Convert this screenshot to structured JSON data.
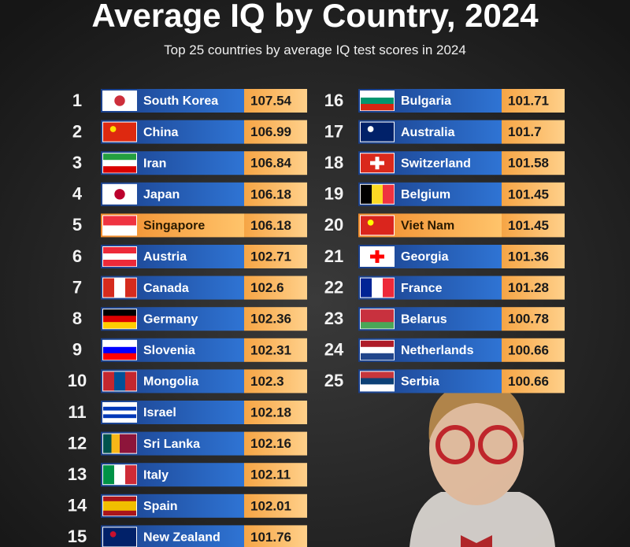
{
  "header": {
    "title": "Average IQ by Country, 2024",
    "subtitle": "Top 25 countries by average IQ test scores in 2024"
  },
  "table": {
    "rows": [
      {
        "rank": 1,
        "country": "South Korea",
        "score": 107.54
      },
      {
        "rank": 2,
        "country": "China",
        "score": 106.99
      },
      {
        "rank": 3,
        "country": "Iran",
        "score": 106.84
      },
      {
        "rank": 4,
        "country": "Japan",
        "score": 106.18
      },
      {
        "rank": 5,
        "country": "Singapore",
        "score": 106.18,
        "highlight": true
      },
      {
        "rank": 6,
        "country": "Austria",
        "score": 102.71
      },
      {
        "rank": 7,
        "country": "Canada",
        "score": 102.6
      },
      {
        "rank": 8,
        "country": "Germany",
        "score": 102.36
      },
      {
        "rank": 9,
        "country": "Slovenia",
        "score": 102.31
      },
      {
        "rank": 10,
        "country": "Mongolia",
        "score": 102.3
      },
      {
        "rank": 11,
        "country": "Israel",
        "score": 102.18
      },
      {
        "rank": 12,
        "country": "Sri Lanka",
        "score": 102.16
      },
      {
        "rank": 13,
        "country": "Italy",
        "score": 102.11
      },
      {
        "rank": 14,
        "country": "Spain",
        "score": 102.01
      },
      {
        "rank": 15,
        "country": "New Zealand",
        "score": 101.76
      },
      {
        "rank": 16,
        "country": "Bulgaria",
        "score": 101.71
      },
      {
        "rank": 17,
        "country": "Australia",
        "score": 101.7
      },
      {
        "rank": 18,
        "country": "Switzerland",
        "score": 101.58
      },
      {
        "rank": 19,
        "country": "Belgium",
        "score": 101.45
      },
      {
        "rank": 20,
        "country": "Viet Nam",
        "score": 101.45,
        "highlight": true
      },
      {
        "rank": 21,
        "country": "Georgia",
        "score": 101.36
      },
      {
        "rank": 22,
        "country": "France",
        "score": 101.28
      },
      {
        "rank": 23,
        "country": "Belarus",
        "score": 100.78
      },
      {
        "rank": 24,
        "country": "Netherlands",
        "score": 100.66
      },
      {
        "rank": 25,
        "country": "Serbia",
        "score": 100.66
      }
    ]
  }
}
